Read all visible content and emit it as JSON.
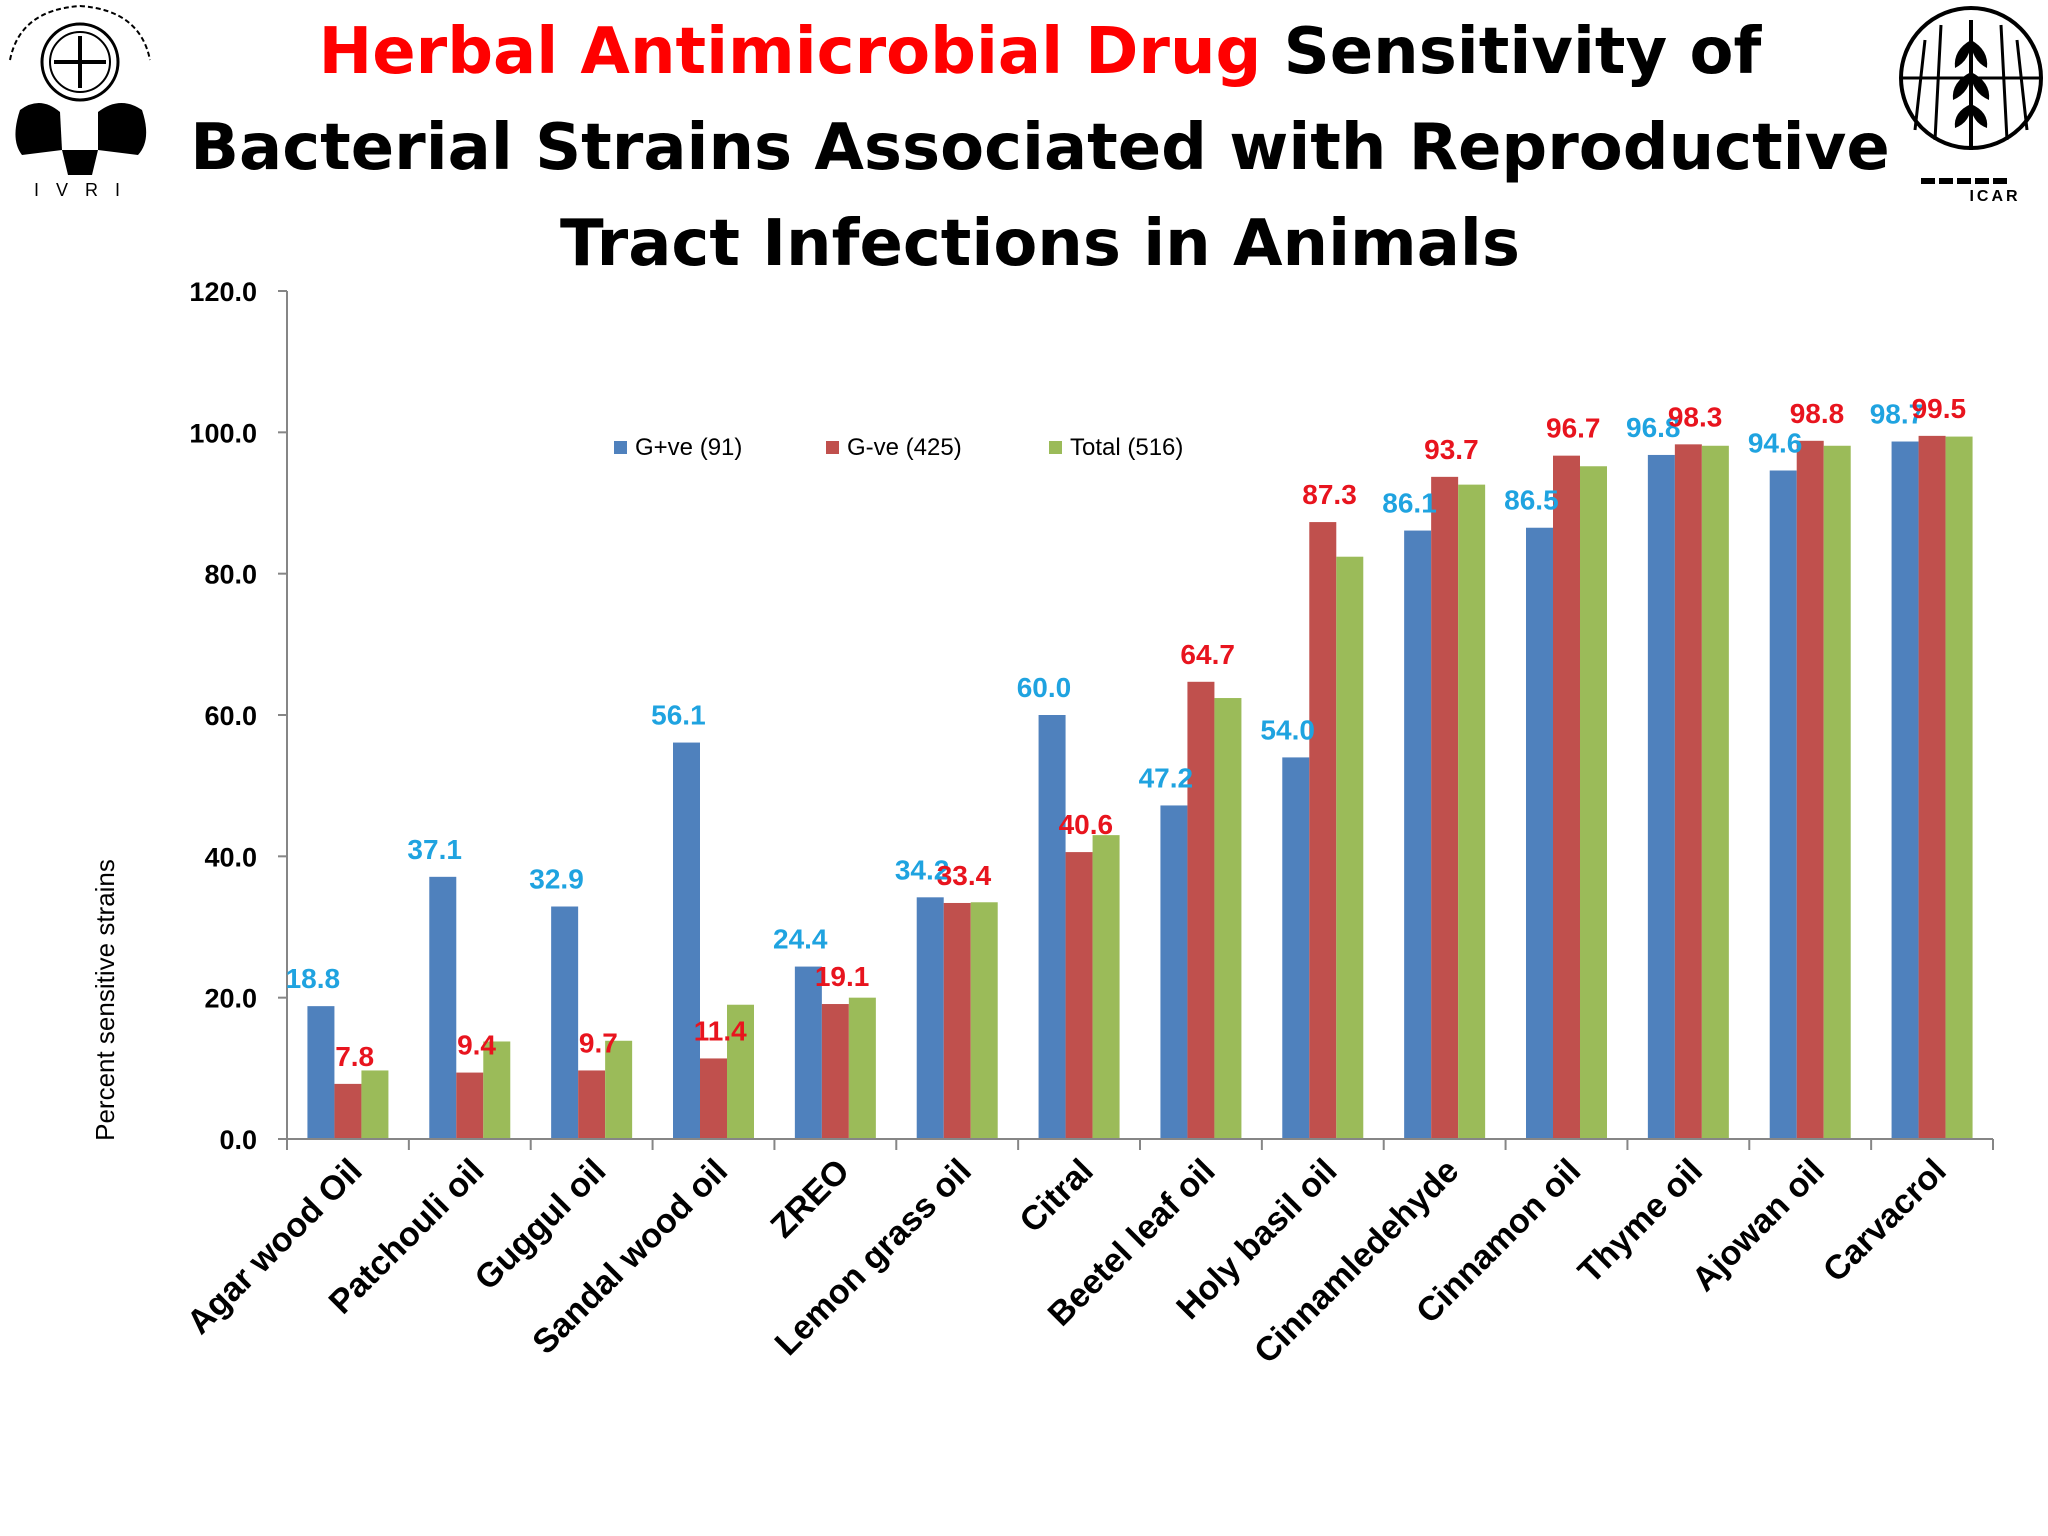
{
  "title": {
    "highlight": "Herbal Antimicrobial Drug",
    "rest": " Sensitivity of Bacterial Strains Associated with Reproductive Tract Infections in Animals"
  },
  "logos": {
    "left": {
      "text": "I V R I"
    },
    "right": {
      "text": "ICAR"
    }
  },
  "chart_data": {
    "type": "bar",
    "title": "",
    "xlabel": "",
    "ylabel": "Percent sensitive strains",
    "ylim": [
      0,
      120
    ],
    "yticks": [
      "0.0",
      "20.0",
      "40.0",
      "60.0",
      "80.0",
      "100.0",
      "120.0"
    ],
    "grid": false,
    "legend_position": "top",
    "categories": [
      "Agar wood Oil",
      "Patchouli oil",
      "Guggul oil",
      "Sandal wood oil",
      "ZREO",
      "Lemon grass oil",
      "Citral",
      "Beetel leaf oil",
      "Holy basil oil",
      "Cinnamledehyde",
      "Cinnamon oil",
      "Thyme oil",
      "Ajowan oil",
      "Carvacrol"
    ],
    "series": [
      {
        "name": "G+ve (91)",
        "color": "#4f81bd",
        "label_color": "#1fa3e0",
        "values": [
          18.8,
          37.1,
          32.9,
          56.1,
          24.4,
          34.2,
          60.0,
          47.2,
          54.0,
          86.1,
          86.5,
          96.8,
          94.6,
          98.7
        ],
        "labels": [
          "18.8",
          "37.1",
          "32.9",
          "56.1",
          "24.4",
          "34.2",
          "60.0",
          "47.2",
          "54.0",
          "86.1",
          "86.5",
          "96.8",
          "94.6",
          "98.7"
        ]
      },
      {
        "name": "G-ve (425)",
        "color": "#c0504d",
        "label_color": "#e8141e",
        "values": [
          7.8,
          9.4,
          9.7,
          11.4,
          19.1,
          33.4,
          40.6,
          64.7,
          87.3,
          93.7,
          96.7,
          98.3,
          98.8,
          99.5
        ],
        "labels": [
          "7.8",
          "9.4",
          "9.7",
          "11.4",
          "19.1",
          "33.4",
          "40.6",
          "64.7",
          "87.3",
          "93.7",
          "96.7",
          "98.3",
          "98.8",
          "99.5"
        ]
      },
      {
        "name": "Total (516)",
        "color": "#9bbb59",
        "values": [
          9.7,
          13.8,
          13.9,
          19.0,
          20.0,
          33.5,
          43.0,
          62.4,
          82.4,
          92.6,
          95.2,
          98.1,
          98.1,
          99.4
        ]
      }
    ]
  }
}
